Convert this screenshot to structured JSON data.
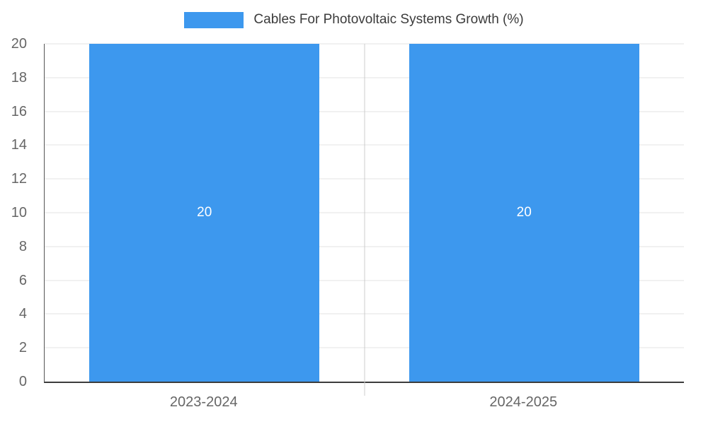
{
  "chart_data": {
    "type": "bar",
    "title": "Cables For Photovoltaic Systems Growth (%)",
    "categories": [
      "2023-2024",
      "2024-2025"
    ],
    "values": [
      20,
      20
    ],
    "value_labels": [
      "20",
      "20"
    ],
    "xlabel": "",
    "ylabel": "",
    "ylim": [
      0,
      20
    ],
    "yticks": [
      0,
      2,
      4,
      6,
      8,
      10,
      12,
      14,
      16,
      18,
      20
    ],
    "grid": true,
    "legend_position": "top",
    "bar_color": "#3d98ee"
  },
  "colors": {
    "bar": "#3d98ee",
    "gridline": "#e3e3e3",
    "axis": "#3c3c3c",
    "tick_label": "#666666",
    "value_label": "#ffffff",
    "title": "#3b3b3b",
    "background": "#ffffff"
  }
}
